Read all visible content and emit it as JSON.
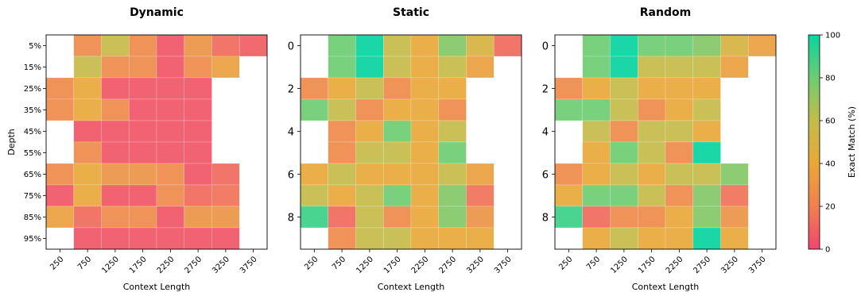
{
  "chart_data": [
    {
      "type": "heatmap",
      "title": "Dynamic",
      "xlabel": "Context Length",
      "ylabel": "Depth",
      "x_ticks": [
        "250",
        "750",
        "1250",
        "1750",
        "2250",
        "2750",
        "3250",
        "3750"
      ],
      "y_ticks": [
        "5%",
        "15%",
        "25%",
        "35%",
        "45%",
        "55%",
        "65%",
        "75%",
        "85%",
        "95%"
      ],
      "values": [
        [
          null,
          25,
          60,
          25,
          5,
          30,
          12,
          8
        ],
        [
          null,
          60,
          25,
          25,
          5,
          25,
          35,
          null
        ],
        [
          25,
          40,
          5,
          5,
          5,
          5,
          null,
          null
        ],
        [
          25,
          40,
          25,
          5,
          5,
          5,
          null,
          null
        ],
        [
          null,
          5,
          5,
          5,
          5,
          5,
          null,
          null
        ],
        [
          null,
          25,
          5,
          5,
          5,
          5,
          null,
          null
        ],
        [
          25,
          40,
          30,
          30,
          25,
          5,
          12,
          null
        ],
        [
          5,
          40,
          5,
          5,
          25,
          12,
          15,
          null
        ],
        [
          35,
          12,
          25,
          25,
          5,
          30,
          30,
          null
        ],
        [
          null,
          5,
          5,
          5,
          5,
          5,
          5,
          null
        ]
      ]
    },
    {
      "type": "heatmap",
      "title": "Static",
      "xlabel": "Context Length",
      "ylabel": "",
      "x_ticks": [
        "250",
        "750",
        "1250",
        "1750",
        "2250",
        "2750",
        "3250",
        "3750"
      ],
      "y_ticks": [
        "0",
        "2",
        "4",
        "6",
        "8"
      ],
      "values": [
        [
          null,
          80,
          100,
          60,
          40,
          75,
          50,
          12
        ],
        [
          null,
          80,
          100,
          60,
          40,
          60,
          35,
          null
        ],
        [
          25,
          40,
          60,
          25,
          40,
          40,
          null,
          null
        ],
        [
          80,
          60,
          25,
          40,
          40,
          25,
          null,
          null
        ],
        [
          null,
          25,
          40,
          80,
          40,
          60,
          null,
          null
        ],
        [
          null,
          25,
          60,
          60,
          40,
          80,
          null,
          null
        ],
        [
          40,
          60,
          40,
          40,
          40,
          60,
          35,
          null
        ],
        [
          60,
          40,
          60,
          80,
          40,
          75,
          15,
          null
        ],
        [
          90,
          12,
          60,
          25,
          40,
          75,
          30,
          null
        ],
        [
          null,
          25,
          60,
          60,
          40,
          40,
          40,
          null
        ]
      ]
    },
    {
      "type": "heatmap",
      "title": "Random",
      "xlabel": "Context Length",
      "ylabel": "",
      "x_ticks": [
        "250",
        "750",
        "1250",
        "1750",
        "2250",
        "2750",
        "3250",
        "3750"
      ],
      "y_ticks": [
        "0",
        "2",
        "4",
        "6",
        "8"
      ],
      "values": [
        [
          null,
          80,
          100,
          80,
          80,
          75,
          50,
          35
        ],
        [
          null,
          80,
          100,
          60,
          60,
          60,
          35,
          null
        ],
        [
          25,
          40,
          60,
          40,
          40,
          40,
          null,
          null
        ],
        [
          80,
          80,
          60,
          25,
          40,
          60,
          null,
          null
        ],
        [
          null,
          60,
          25,
          60,
          60,
          40,
          null,
          null
        ],
        [
          null,
          40,
          80,
          60,
          25,
          100,
          null,
          null
        ],
        [
          25,
          40,
          60,
          40,
          60,
          60,
          75,
          null
        ],
        [
          40,
          80,
          80,
          60,
          25,
          75,
          15,
          null
        ],
        [
          90,
          12,
          25,
          25,
          40,
          75,
          30,
          null
        ],
        [
          null,
          40,
          60,
          40,
          40,
          100,
          40,
          null
        ]
      ]
    }
  ],
  "colorbar": {
    "label": "Exact Match (%)",
    "ticks": [
      "0",
      "20",
      "40",
      "60",
      "80",
      "100"
    ],
    "range": [
      0,
      100
    ],
    "stops": [
      "#f0466f",
      "#f08050",
      "#e8a838",
      "#c4bc4a",
      "#6ecc72",
      "#08d4a0"
    ]
  }
}
